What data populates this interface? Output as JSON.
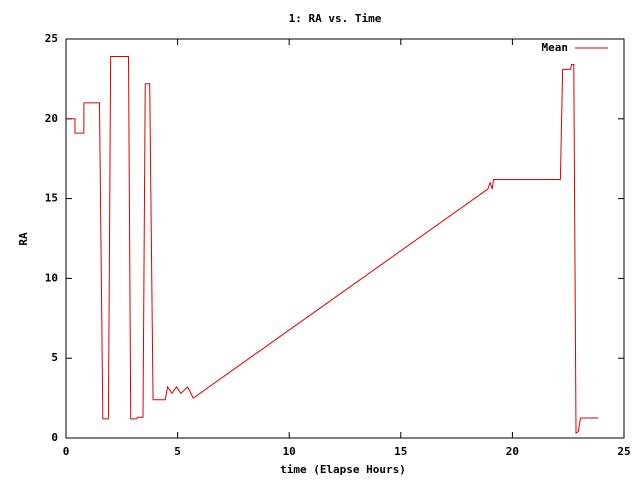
{
  "chart_data": {
    "type": "line",
    "title": "1: RA vs. Time",
    "x_label": "time (Elapse Hours)",
    "y_label": "RA",
    "xlim": [
      0,
      25
    ],
    "xticks": [
      0,
      5,
      10,
      15,
      20,
      25
    ],
    "ylim": [
      0,
      25
    ],
    "yticks": [
      0,
      5,
      10,
      15,
      20,
      25
    ],
    "legend": "top-right",
    "series": [
      {
        "name": "Mean",
        "color": "#e00000",
        "x": [
          0,
          0.4,
          0.4,
          0.8,
          0.8,
          1.5,
          1.65,
          1.9,
          2.0,
          2.8,
          2.9,
          3.15,
          3.2,
          3.45,
          3.55,
          3.75,
          3.9,
          4.45,
          4.55,
          4.75,
          4.95,
          5.15,
          5.45,
          5.7,
          18.9,
          19.0,
          19.1,
          19.15,
          22.15,
          22.25,
          22.6,
          22.65,
          22.75,
          22.85,
          22.95,
          23.05,
          23.85
        ],
        "values": [
          20,
          20,
          19.1,
          19.1,
          21,
          21,
          1.2,
          1.2,
          23.9,
          23.9,
          1.2,
          1.2,
          1.3,
          1.3,
          22.2,
          22.2,
          2.4,
          2.4,
          3.2,
          2.8,
          3.2,
          2.8,
          3.2,
          2.5,
          15.6,
          16,
          15.6,
          16.2,
          16.2,
          23.1,
          23.1,
          23.4,
          23.4,
          0.3,
          0.4,
          1.25,
          1.25
        ]
      }
    ]
  }
}
